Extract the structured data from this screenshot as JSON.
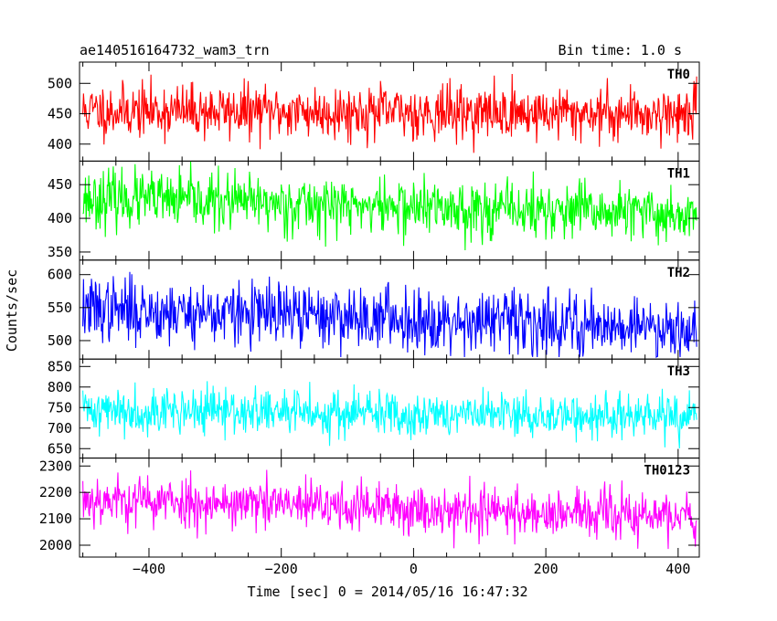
{
  "header": {
    "left": "ae140516164732_wam3_trn",
    "right": "Bin time: 1.0 s"
  },
  "chart_data": {
    "type": "line",
    "title": "ae140516164732_wam3_trn",
    "bin_time": "Bin time: 1.0 s",
    "xlabel": "Time [sec] 0 = 2014/05/16 16:47:32",
    "ylabel": "Counts/sec",
    "xlim": [
      -505,
      432
    ],
    "x_start": -500,
    "x_end": 428,
    "x_step": 1,
    "x_ticks": [
      -400,
      -200,
      0,
      200,
      400
    ],
    "x_tick_labels": [
      "−400",
      "−200",
      "0",
      "200",
      "400"
    ],
    "panels": [
      {
        "name": "TH0",
        "color": "#ff0000",
        "ylim": [
          372,
          535
        ],
        "y_ticks": [
          400,
          450,
          500
        ],
        "y_tick_labels": [
          "400",
          "450",
          "500"
        ],
        "mean_start": 455,
        "mean_end": 450,
        "noise_sd": 22,
        "spread_min": 375,
        "spread_max": 535,
        "seed": 11
      },
      {
        "name": "TH1",
        "color": "#00ff00",
        "ylim": [
          338,
          485
        ],
        "y_ticks": [
          350,
          400,
          450
        ],
        "y_tick_labels": [
          "350",
          "400",
          "450"
        ],
        "mean_start": 430,
        "mean_end": 405,
        "noise_sd": 21,
        "spread_min": 345,
        "spread_max": 485,
        "seed": 23
      },
      {
        "name": "TH2",
        "color": "#0000ff",
        "ylim": [
          472,
          622
        ],
        "y_ticks": [
          500,
          550,
          600
        ],
        "y_tick_labels": [
          "500",
          "550",
          "600"
        ],
        "mean_start": 548,
        "mean_end": 520,
        "noise_sd": 24,
        "spread_min": 475,
        "spread_max": 622,
        "seed": 37
      },
      {
        "name": "TH3",
        "color": "#00ffff",
        "ylim": [
          627,
          868
        ],
        "y_ticks": [
          650,
          700,
          750,
          800,
          850
        ],
        "y_tick_labels": [
          "650",
          "700",
          "750",
          "800",
          "850"
        ],
        "mean_start": 745,
        "mean_end": 725,
        "noise_sd": 28,
        "spread_min": 630,
        "spread_max": 868,
        "seed": 41
      },
      {
        "name": "TH0123",
        "color": "#ff00ff",
        "ylim": [
          1955,
          2330
        ],
        "y_ticks": [
          2000,
          2100,
          2200,
          2300
        ],
        "y_tick_labels": [
          "2000",
          "2100",
          "2200",
          "2300"
        ],
        "mean_start": 2175,
        "mean_end": 2105,
        "noise_sd": 48,
        "spread_min": 1960,
        "spread_max": 2330,
        "seed": 53
      }
    ]
  }
}
